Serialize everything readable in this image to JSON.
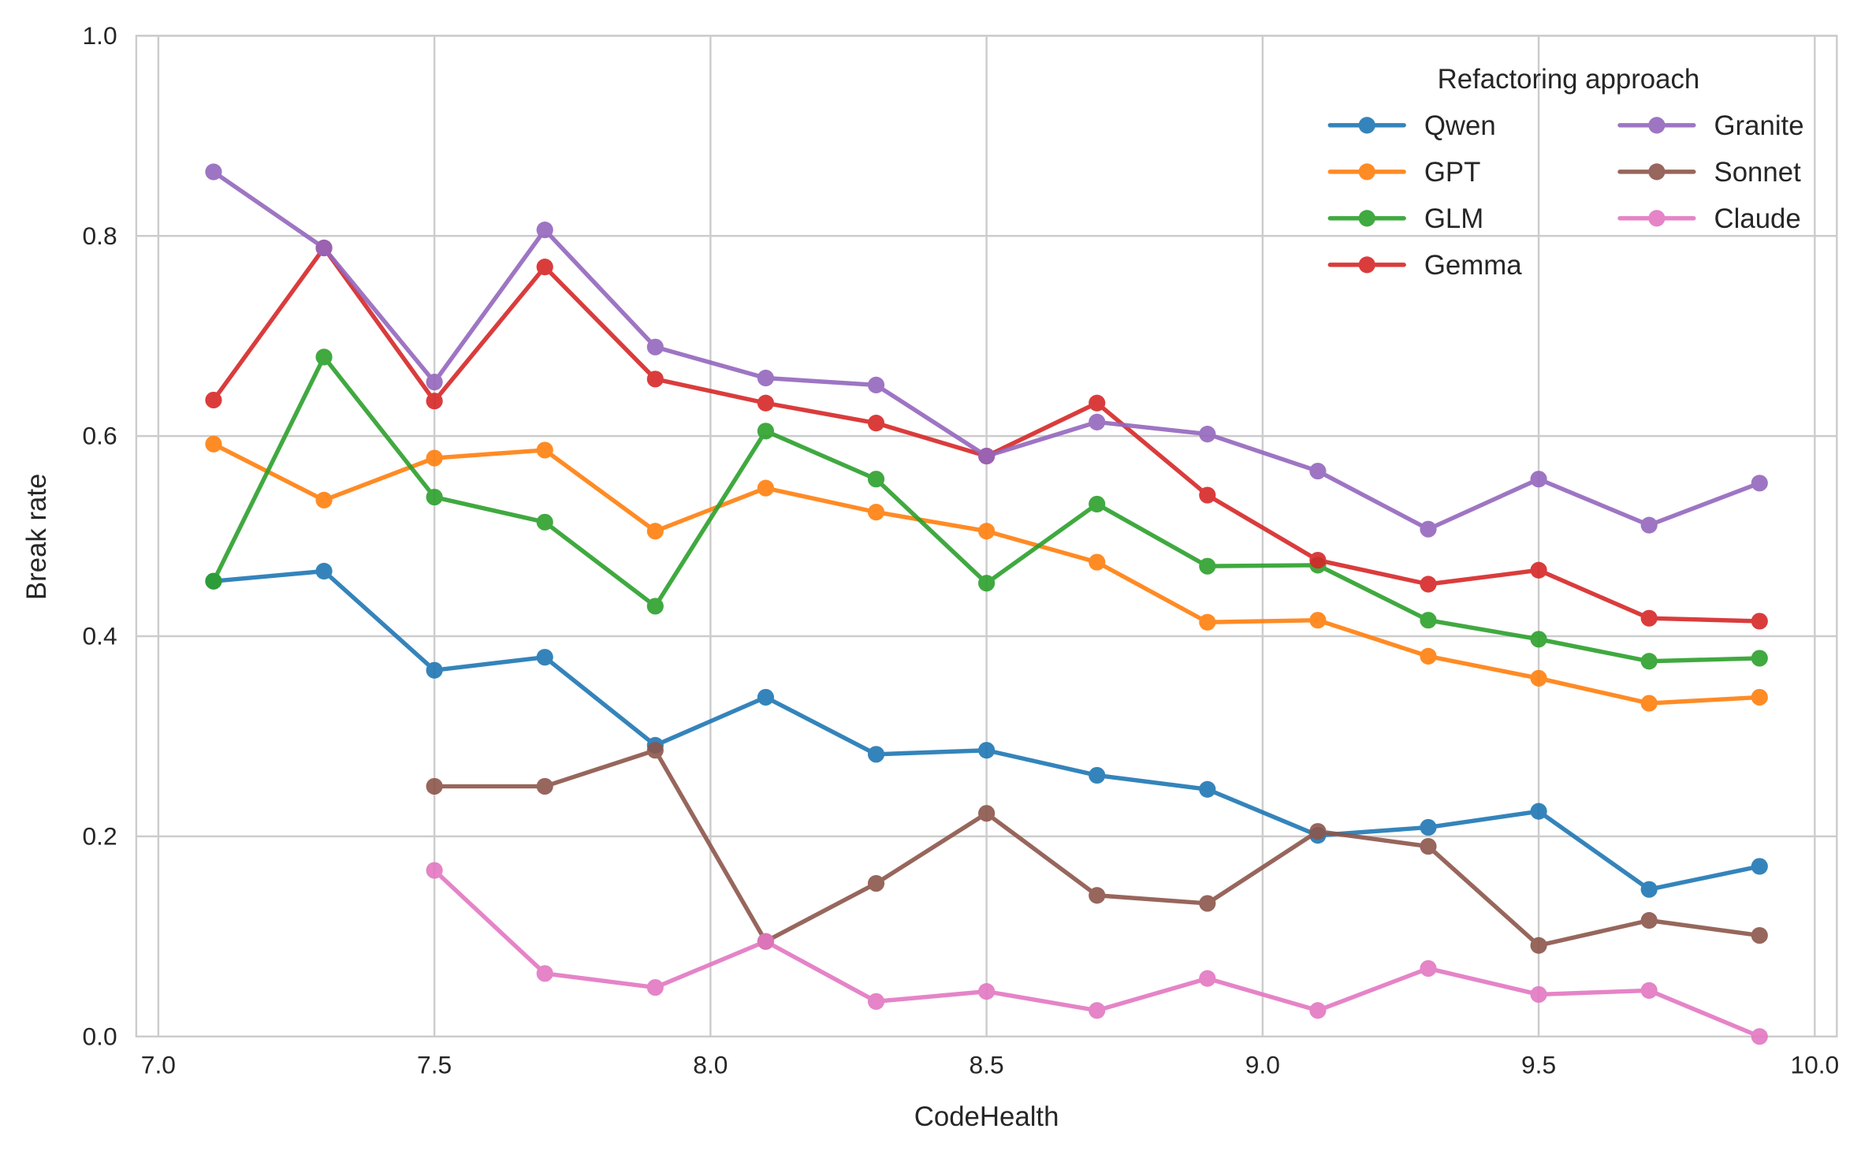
{
  "chart_data": {
    "type": "line",
    "title": "",
    "xlabel": "CodeHealth",
    "ylabel": "Break rate",
    "xlim": [
      6.96,
      10.04
    ],
    "ylim": [
      0.0,
      1.0
    ],
    "xticks": [
      "7.0",
      "7.5",
      "8.0",
      "8.5",
      "9.0",
      "9.5",
      "10.0"
    ],
    "yticks": [
      "0.0",
      "0.2",
      "0.4",
      "0.6",
      "0.8",
      "1.0"
    ],
    "grid": true,
    "legend": {
      "title": "Refactoring approach",
      "placement": "top-right",
      "columns": 2
    },
    "x": [
      7.1,
      7.3,
      7.5,
      7.7,
      7.9,
      8.1,
      8.3,
      8.5,
      8.7,
      8.9,
      9.1,
      9.3,
      9.5,
      9.7,
      9.9
    ],
    "series": [
      {
        "name": "Qwen",
        "color": "#1f77b4",
        "values": [
          0.455,
          0.465,
          0.366,
          0.379,
          0.291,
          0.339,
          0.282,
          0.286,
          0.261,
          0.247,
          0.201,
          0.209,
          0.225,
          0.147,
          0.17
        ]
      },
      {
        "name": "GPT",
        "color": "#ff7f0e",
        "values": [
          0.592,
          0.536,
          0.578,
          0.586,
          0.505,
          0.548,
          0.524,
          0.505,
          0.474,
          0.414,
          0.416,
          0.38,
          0.358,
          0.333,
          0.339
        ]
      },
      {
        "name": "GLM",
        "color": "#2ca02c",
        "values": [
          0.455,
          0.679,
          0.539,
          0.514,
          0.43,
          0.605,
          0.557,
          0.453,
          0.532,
          0.47,
          0.471,
          0.416,
          0.397,
          0.375,
          0.378
        ]
      },
      {
        "name": "Gemma",
        "color": "#d62728",
        "values": [
          0.636,
          0.788,
          0.635,
          0.769,
          0.657,
          0.633,
          0.613,
          0.58,
          0.633,
          0.541,
          0.476,
          0.452,
          0.466,
          0.418,
          0.415
        ]
      },
      {
        "name": "Granite",
        "color": "#9467bd",
        "values": [
          0.864,
          0.788,
          0.654,
          0.806,
          0.689,
          0.658,
          0.651,
          0.58,
          0.614,
          0.602,
          0.565,
          0.507,
          0.557,
          0.511,
          0.553
        ]
      },
      {
        "name": "Sonnet",
        "color": "#8c564b",
        "values": [
          null,
          null,
          0.25,
          0.25,
          0.286,
          0.095,
          0.153,
          0.223,
          0.141,
          0.133,
          0.205,
          0.19,
          0.091,
          0.116,
          0.101
        ]
      },
      {
        "name": "Claude",
        "color": "#e377c2",
        "values": [
          null,
          null,
          0.166,
          0.063,
          0.049,
          0.095,
          0.035,
          0.045,
          0.026,
          0.058,
          0.026,
          0.068,
          0.042,
          0.046,
          0.0
        ]
      }
    ]
  }
}
